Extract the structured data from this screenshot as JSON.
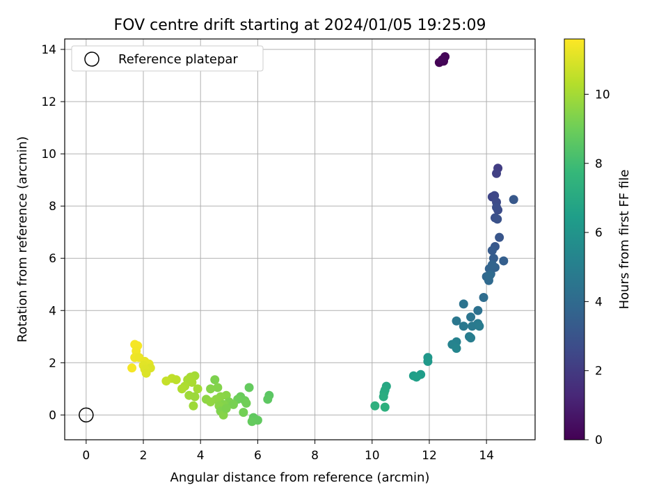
{
  "chart_data": {
    "type": "scatter",
    "title": "FOV centre drift starting at 2024/01/05 19:25:09",
    "xlabel": "Angular distance from reference (arcmin)",
    "ylabel": "Rotation from reference (arcmin)",
    "xlim": [
      -0.75,
      15.7
    ],
    "ylim": [
      -0.95,
      14.4
    ],
    "xticks": [
      0,
      2,
      4,
      6,
      8,
      10,
      12,
      14
    ],
    "yticks": [
      0,
      2,
      4,
      6,
      8,
      10,
      12,
      14
    ],
    "grid": true,
    "legend": {
      "placement": "top-left",
      "entries": [
        "Reference platepar"
      ]
    },
    "reference_point": {
      "label": "Reference platepar",
      "x": 0,
      "y": 0
    },
    "colorbar": {
      "label": "Hours from first FF file",
      "colormap": "viridis",
      "range": [
        0,
        11.6
      ],
      "ticks": [
        0,
        2,
        4,
        6,
        8,
        10
      ]
    },
    "points": [
      {
        "x": 12.35,
        "y": 13.5,
        "t": 0.0
      },
      {
        "x": 12.5,
        "y": 13.55,
        "t": 0.05
      },
      {
        "x": 12.55,
        "y": 13.72,
        "t": 0.1
      },
      {
        "x": 12.45,
        "y": 13.6,
        "t": 0.15
      },
      {
        "x": 14.4,
        "y": 9.45,
        "t": 2.1
      },
      {
        "x": 14.35,
        "y": 9.25,
        "t": 2.2
      },
      {
        "x": 14.2,
        "y": 8.35,
        "t": 2.4
      },
      {
        "x": 14.28,
        "y": 8.4,
        "t": 2.5
      },
      {
        "x": 14.35,
        "y": 8.15,
        "t": 2.6
      },
      {
        "x": 14.4,
        "y": 7.85,
        "t": 2.7
      },
      {
        "x": 14.35,
        "y": 7.95,
        "t": 2.75
      },
      {
        "x": 14.3,
        "y": 7.55,
        "t": 2.85
      },
      {
        "x": 14.38,
        "y": 7.5,
        "t": 2.9
      },
      {
        "x": 14.95,
        "y": 8.25,
        "t": 3.2
      },
      {
        "x": 14.45,
        "y": 6.8,
        "t": 3.1
      },
      {
        "x": 14.3,
        "y": 6.45,
        "t": 3.2
      },
      {
        "x": 14.2,
        "y": 6.3,
        "t": 3.3
      },
      {
        "x": 14.25,
        "y": 6.0,
        "t": 3.4
      },
      {
        "x": 14.6,
        "y": 5.9,
        "t": 3.5
      },
      {
        "x": 14.3,
        "y": 5.65,
        "t": 3.6
      },
      {
        "x": 14.1,
        "y": 5.6,
        "t": 3.65
      },
      {
        "x": 14.2,
        "y": 5.75,
        "t": 3.7
      },
      {
        "x": 14.15,
        "y": 5.4,
        "t": 3.8
      },
      {
        "x": 14.0,
        "y": 5.3,
        "t": 3.85
      },
      {
        "x": 14.08,
        "y": 5.15,
        "t": 3.95
      },
      {
        "x": 14.12,
        "y": 5.35,
        "t": 4.0
      },
      {
        "x": 13.9,
        "y": 4.5,
        "t": 4.1
      },
      {
        "x": 13.2,
        "y": 4.25,
        "t": 4.4
      },
      {
        "x": 13.7,
        "y": 4.0,
        "t": 4.3
      },
      {
        "x": 13.45,
        "y": 3.75,
        "t": 4.45
      },
      {
        "x": 12.95,
        "y": 3.6,
        "t": 4.6
      },
      {
        "x": 13.2,
        "y": 3.4,
        "t": 4.65
      },
      {
        "x": 13.5,
        "y": 3.4,
        "t": 4.7
      },
      {
        "x": 13.7,
        "y": 3.5,
        "t": 4.75
      },
      {
        "x": 13.75,
        "y": 3.4,
        "t": 4.8
      },
      {
        "x": 13.4,
        "y": 3.0,
        "t": 4.85
      },
      {
        "x": 13.45,
        "y": 2.95,
        "t": 4.9
      },
      {
        "x": 12.95,
        "y": 2.8,
        "t": 5.1
      },
      {
        "x": 12.8,
        "y": 2.7,
        "t": 5.2
      },
      {
        "x": 12.95,
        "y": 2.55,
        "t": 5.3
      },
      {
        "x": 11.95,
        "y": 2.2,
        "t": 6.1
      },
      {
        "x": 11.95,
        "y": 2.05,
        "t": 6.2
      },
      {
        "x": 11.7,
        "y": 1.55,
        "t": 6.4
      },
      {
        "x": 11.45,
        "y": 1.5,
        "t": 6.5
      },
      {
        "x": 11.55,
        "y": 1.45,
        "t": 6.55
      },
      {
        "x": 10.5,
        "y": 1.1,
        "t": 6.9
      },
      {
        "x": 10.45,
        "y": 0.95,
        "t": 7.0
      },
      {
        "x": 10.42,
        "y": 0.85,
        "t": 7.05
      },
      {
        "x": 10.4,
        "y": 0.7,
        "t": 7.15
      },
      {
        "x": 10.1,
        "y": 0.35,
        "t": 7.3
      },
      {
        "x": 10.45,
        "y": 0.3,
        "t": 7.35
      },
      {
        "x": 6.4,
        "y": 0.75,
        "t": 8.6
      },
      {
        "x": 6.35,
        "y": 0.6,
        "t": 8.65
      },
      {
        "x": 5.7,
        "y": 1.05,
        "t": 8.8
      },
      {
        "x": 5.4,
        "y": 0.7,
        "t": 8.9
      },
      {
        "x": 5.55,
        "y": 0.55,
        "t": 8.95
      },
      {
        "x": 5.3,
        "y": 0.6,
        "t": 9.0
      },
      {
        "x": 5.6,
        "y": 0.45,
        "t": 9.05
      },
      {
        "x": 5.5,
        "y": 0.1,
        "t": 9.1
      },
      {
        "x": 5.85,
        "y": -0.1,
        "t": 8.7
      },
      {
        "x": 6.0,
        "y": -0.2,
        "t": 8.75
      },
      {
        "x": 5.8,
        "y": -0.25,
        "t": 8.8
      },
      {
        "x": 4.5,
        "y": 1.35,
        "t": 9.3
      },
      {
        "x": 4.6,
        "y": 1.05,
        "t": 9.4
      },
      {
        "x": 4.35,
        "y": 1.0,
        "t": 9.45
      },
      {
        "x": 4.9,
        "y": 0.75,
        "t": 9.5
      },
      {
        "x": 4.7,
        "y": 0.7,
        "t": 9.55
      },
      {
        "x": 4.55,
        "y": 0.6,
        "t": 9.6
      },
      {
        "x": 4.2,
        "y": 0.6,
        "t": 9.6
      },
      {
        "x": 4.35,
        "y": 0.5,
        "t": 9.65
      },
      {
        "x": 5.0,
        "y": 0.5,
        "t": 9.3
      },
      {
        "x": 4.8,
        "y": 0.4,
        "t": 9.4
      },
      {
        "x": 4.65,
        "y": 0.35,
        "t": 9.5
      },
      {
        "x": 5.15,
        "y": 0.4,
        "t": 9.2
      },
      {
        "x": 4.7,
        "y": 0.15,
        "t": 9.35
      },
      {
        "x": 4.8,
        "y": 0.0,
        "t": 9.45
      },
      {
        "x": 4.9,
        "y": 0.25,
        "t": 9.3
      },
      {
        "x": 3.8,
        "y": 1.5,
        "t": 10.0
      },
      {
        "x": 3.65,
        "y": 1.45,
        "t": 10.05
      },
      {
        "x": 3.55,
        "y": 1.35,
        "t": 10.1
      },
      {
        "x": 3.7,
        "y": 1.25,
        "t": 10.1
      },
      {
        "x": 3.9,
        "y": 1.0,
        "t": 10.0
      },
      {
        "x": 3.45,
        "y": 1.1,
        "t": 10.15
      },
      {
        "x": 3.35,
        "y": 1.0,
        "t": 10.2
      },
      {
        "x": 3.6,
        "y": 0.75,
        "t": 9.9
      },
      {
        "x": 3.8,
        "y": 0.7,
        "t": 9.85
      },
      {
        "x": 3.75,
        "y": 0.35,
        "t": 9.9
      },
      {
        "x": 3.0,
        "y": 1.4,
        "t": 10.5
      },
      {
        "x": 3.15,
        "y": 1.35,
        "t": 10.45
      },
      {
        "x": 2.8,
        "y": 1.3,
        "t": 10.6
      },
      {
        "x": 1.7,
        "y": 2.7,
        "t": 11.5
      },
      {
        "x": 1.8,
        "y": 2.65,
        "t": 11.45
      },
      {
        "x": 1.75,
        "y": 2.45,
        "t": 11.4
      },
      {
        "x": 1.7,
        "y": 2.2,
        "t": 11.35
      },
      {
        "x": 1.85,
        "y": 2.2,
        "t": 11.3
      },
      {
        "x": 2.05,
        "y": 2.05,
        "t": 11.2
      },
      {
        "x": 2.2,
        "y": 1.95,
        "t": 11.15
      },
      {
        "x": 2.0,
        "y": 1.9,
        "t": 11.1
      },
      {
        "x": 2.25,
        "y": 1.8,
        "t": 11.0
      },
      {
        "x": 2.05,
        "y": 1.75,
        "t": 11.05
      },
      {
        "x": 2.1,
        "y": 1.6,
        "t": 11.0
      },
      {
        "x": 1.6,
        "y": 1.8,
        "t": 11.45
      }
    ]
  }
}
